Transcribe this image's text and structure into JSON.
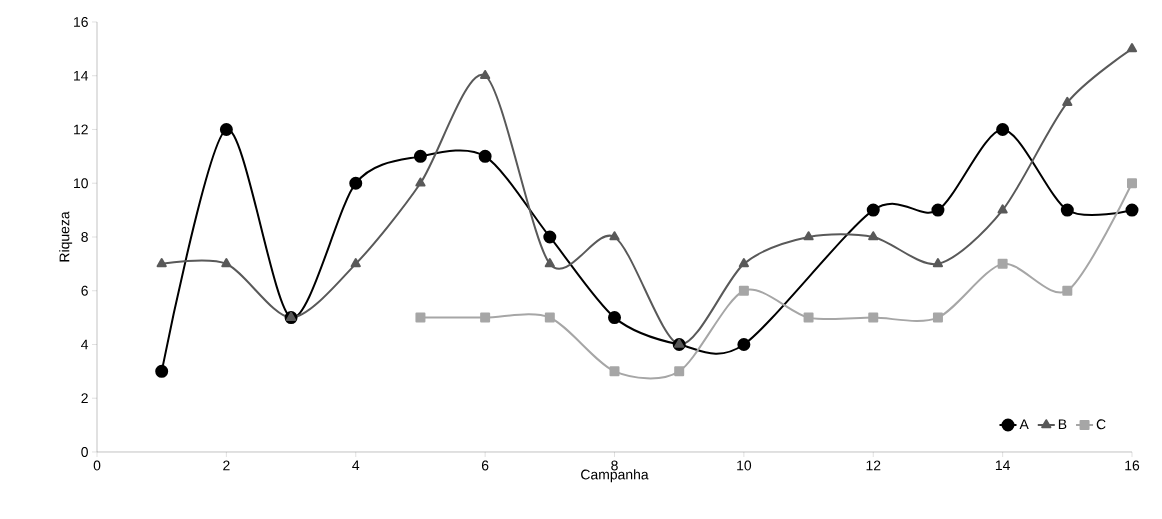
{
  "chart_data": {
    "type": "line",
    "xlabel": "Campanha",
    "ylabel": "Riqueza",
    "xlim": [
      0,
      16
    ],
    "xticks": [
      0,
      2,
      4,
      6,
      8,
      10,
      12,
      14,
      16
    ],
    "ylim": [
      0,
      16
    ],
    "yticks": [
      0,
      2,
      4,
      6,
      8,
      10,
      12,
      14,
      16
    ],
    "grid": false,
    "legend": "bottom right",
    "line_style": "solid",
    "series": [
      {
        "name": "A",
        "color": "#000000",
        "marker": "circle",
        "x": [
          1,
          2,
          3,
          4,
          5,
          6,
          7,
          8,
          9,
          10,
          12,
          13,
          14,
          15,
          16
        ],
        "values": [
          3,
          12,
          5,
          10,
          11,
          11,
          8,
          5,
          4,
          4,
          9,
          9,
          12,
          9,
          9
        ]
      },
      {
        "name": "B",
        "color": "#595959",
        "marker": "triangle",
        "x": [
          1,
          2,
          3,
          4,
          5,
          6,
          7,
          8,
          9,
          10,
          11,
          12,
          13,
          14,
          15,
          16
        ],
        "values": [
          7,
          7,
          5,
          7,
          10,
          14,
          7,
          8,
          4,
          7,
          8,
          8,
          7,
          9,
          13,
          15
        ]
      },
      {
        "name": "C",
        "color": "#a6a6a6",
        "marker": "square",
        "x": [
          5,
          6,
          7,
          8,
          9,
          10,
          11,
          12,
          13,
          14,
          15,
          16
        ],
        "values": [
          5,
          5,
          5,
          3,
          3,
          6,
          5,
          5,
          5,
          7,
          6,
          10
        ]
      }
    ]
  }
}
